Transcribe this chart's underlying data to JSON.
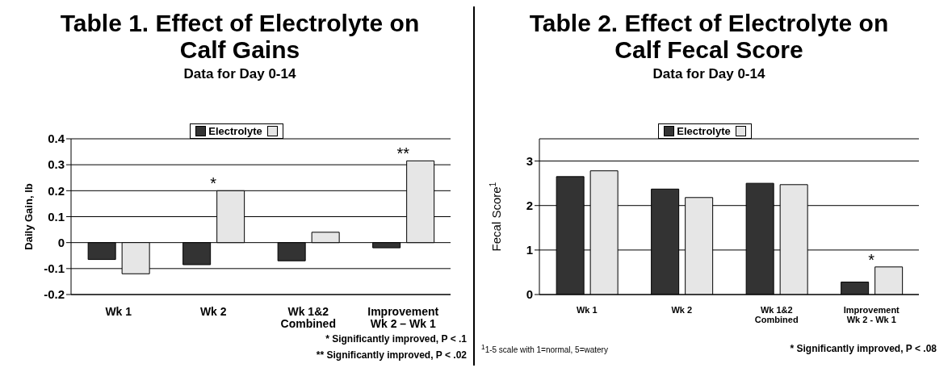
{
  "chart_data": [
    {
      "type": "bar",
      "title": "Table 1.  Effect of Electrolyte on Calf Gains",
      "subtitle": "Data for Day 0-14",
      "ylabel": "Daily Gain, lb",
      "categories": [
        "Wk 1",
        "Wk 2",
        "Wk 1&2\nCombined",
        "Improvement\nWk 2 – Wk 1"
      ],
      "series": [
        {
          "name": "Electrolyte",
          "color": "#333333",
          "values": [
            -0.065,
            -0.085,
            -0.07,
            -0.02
          ]
        },
        {
          "color": "#e6e6e6",
          "values": [
            -0.12,
            0.2,
            0.04,
            0.315
          ]
        }
      ],
      "ylim": [
        -0.2,
        0.4
      ],
      "yticks": [
        -0.2,
        -0.1,
        0,
        0.1,
        0.2,
        0.3,
        0.4
      ],
      "grid": "y",
      "legend": "top",
      "annotations": [
        {
          "text": "*",
          "x": "Wk 2",
          "y": 0.2
        },
        {
          "text": "**",
          "x": "Improvement\nWk 2 – Wk 1",
          "y": 0.315
        },
        "* Significantly improved, P < .1",
        "** Significantly improved, P < .02"
      ]
    },
    {
      "type": "bar",
      "title": "Table 2.  Effect of Electrolyte on Calf Fecal Score",
      "subtitle": "Data for Day 0-14",
      "ylabel": "Fecal Score$^{1}$",
      "categories": [
        "Wk 1",
        "Wk 2",
        "Wk 1&2\nCombined",
        "Improvement\nWk 2 - Wk 1"
      ],
      "series": [
        {
          "name": "Electrolyte",
          "color": "#333333",
          "values": [
            2.65,
            2.37,
            2.5,
            0.28
          ]
        },
        {
          "color": "#e6e6e6",
          "values": [
            2.78,
            2.18,
            2.47,
            0.62
          ]
        }
      ],
      "ylim": [
        0,
        3.5
      ],
      "yticks": [
        0,
        1,
        2,
        3
      ],
      "grid": "y",
      "legend": "top",
      "annotations": [
        {
          "text": "*",
          "x": "Improvement\nWk 2 - Wk 1",
          "y": 0.62
        },
        "$^{1}$1-5 scale with 1=normal, 5=watery",
        "* Significantly improved, P < .08"
      ]
    }
  ]
}
